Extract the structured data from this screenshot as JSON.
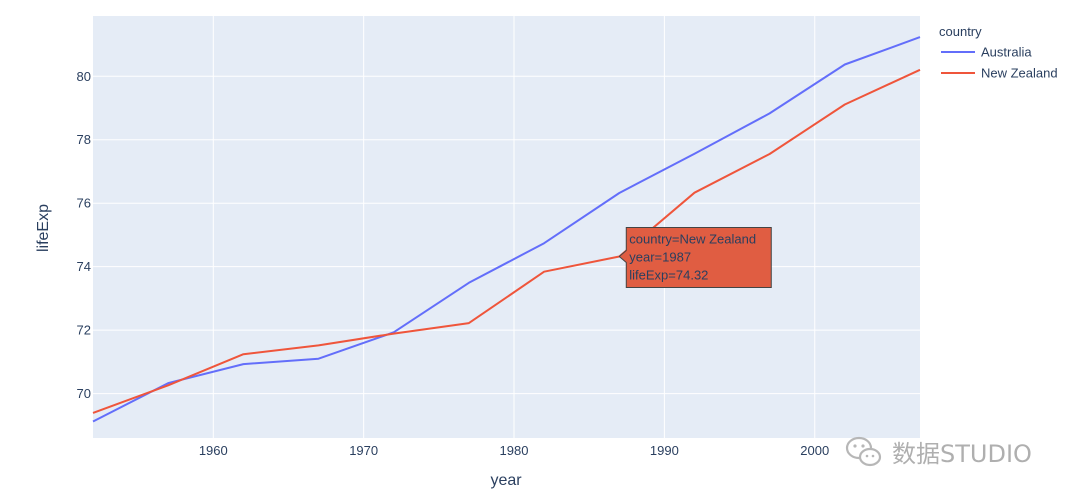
{
  "chart_data": {
    "type": "line",
    "xlabel": "year",
    "ylabel": "lifeExp",
    "xlim": [
      1952,
      2007
    ],
    "ylim": [
      68.6,
      81.9
    ],
    "xticks": [
      1960,
      1970,
      1980,
      1990,
      2000
    ],
    "yticks": [
      70,
      72,
      74,
      76,
      78,
      80
    ],
    "legend_title": "country",
    "x": [
      1952,
      1957,
      1962,
      1967,
      1972,
      1977,
      1982,
      1987,
      1992,
      1997,
      2002,
      2007
    ],
    "series": [
      {
        "name": "Australia",
        "color": "#636efa",
        "values": [
          69.12,
          70.33,
          70.93,
          71.1,
          71.93,
          73.49,
          74.74,
          76.32,
          77.56,
          78.83,
          80.37,
          81.235
        ]
      },
      {
        "name": "New Zealand",
        "color": "#ef553b",
        "values": [
          69.39,
          70.26,
          71.24,
          71.52,
          71.89,
          72.22,
          73.84,
          74.32,
          76.33,
          77.55,
          79.11,
          80.204
        ]
      }
    ],
    "tooltip": {
      "lines": [
        "country=New Zealand",
        "year=1987",
        "lifeExp=74.32"
      ],
      "color": "#e05d42",
      "x": 1987,
      "y": 74.32
    }
  },
  "watermark": {
    "text": "数据STUDIO",
    "icon": "wechat-icon"
  }
}
